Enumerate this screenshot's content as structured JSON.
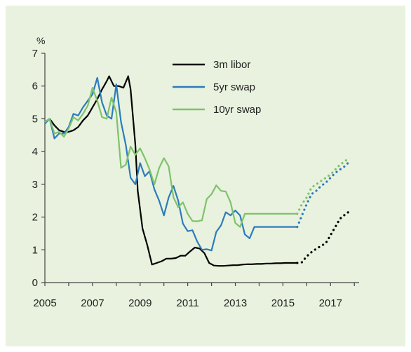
{
  "chart_data": {
    "type": "line",
    "title": "",
    "xlabel": "",
    "ylabel": "%",
    "xlim": [
      2005,
      2018.2
    ],
    "ylim": [
      0,
      7
    ],
    "x_ticks": [
      2005,
      2007,
      2009,
      2011,
      2013,
      2015,
      2017
    ],
    "y_ticks": [
      0,
      1,
      2,
      3,
      4,
      5,
      6,
      7
    ],
    "grid": false,
    "legend_position": "top-center",
    "forecast_start_x": 2015.6,
    "series": [
      {
        "name": "3m libor",
        "color": "#000000",
        "points": [
          [
            2005.0,
            4.9
          ],
          [
            2005.2,
            5.0
          ],
          [
            2005.4,
            4.8
          ],
          [
            2005.6,
            4.65
          ],
          [
            2005.8,
            4.6
          ],
          [
            2006.0,
            4.6
          ],
          [
            2006.2,
            4.65
          ],
          [
            2006.4,
            4.75
          ],
          [
            2006.6,
            4.95
          ],
          [
            2006.8,
            5.1
          ],
          [
            2007.0,
            5.35
          ],
          [
            2007.2,
            5.6
          ],
          [
            2007.4,
            5.9
          ],
          [
            2007.6,
            6.15
          ],
          [
            2007.7,
            6.3
          ],
          [
            2007.9,
            6.0
          ],
          [
            2008.1,
            6.0
          ],
          [
            2008.3,
            5.95
          ],
          [
            2008.5,
            6.3
          ],
          [
            2008.6,
            5.9
          ],
          [
            2008.8,
            4.2
          ],
          [
            2008.9,
            2.8
          ],
          [
            2009.1,
            1.65
          ],
          [
            2009.3,
            1.15
          ],
          [
            2009.5,
            0.55
          ],
          [
            2009.7,
            0.6
          ],
          [
            2009.9,
            0.65
          ],
          [
            2010.1,
            0.73
          ],
          [
            2010.3,
            0.73
          ],
          [
            2010.5,
            0.75
          ],
          [
            2010.7,
            0.82
          ],
          [
            2010.9,
            0.82
          ],
          [
            2011.1,
            0.95
          ],
          [
            2011.3,
            1.07
          ],
          [
            2011.5,
            1.04
          ],
          [
            2011.7,
            0.9
          ],
          [
            2011.9,
            0.6
          ],
          [
            2012.1,
            0.52
          ],
          [
            2012.3,
            0.51
          ],
          [
            2012.5,
            0.51
          ],
          [
            2012.7,
            0.52
          ],
          [
            2012.9,
            0.53
          ],
          [
            2013.1,
            0.53
          ],
          [
            2013.3,
            0.55
          ],
          [
            2013.5,
            0.56
          ],
          [
            2013.7,
            0.56
          ],
          [
            2013.9,
            0.57
          ],
          [
            2014.1,
            0.57
          ],
          [
            2014.3,
            0.58
          ],
          [
            2014.5,
            0.58
          ],
          [
            2014.7,
            0.59
          ],
          [
            2014.9,
            0.59
          ],
          [
            2015.1,
            0.6
          ],
          [
            2015.3,
            0.6
          ],
          [
            2015.5,
            0.6
          ],
          [
            2015.6,
            0.6
          ],
          [
            2015.8,
            0.62
          ],
          [
            2016.0,
            0.8
          ],
          [
            2016.2,
            0.93
          ],
          [
            2016.4,
            1.03
          ],
          [
            2016.6,
            1.12
          ],
          [
            2016.8,
            1.2
          ],
          [
            2017.0,
            1.45
          ],
          [
            2017.2,
            1.7
          ],
          [
            2017.4,
            1.95
          ],
          [
            2017.6,
            2.07
          ],
          [
            2017.8,
            2.18
          ]
        ]
      },
      {
        "name": "5yr swap",
        "color": "#2d7bbd",
        "points": [
          [
            2005.0,
            4.85
          ],
          [
            2005.2,
            5.0
          ],
          [
            2005.4,
            4.4
          ],
          [
            2005.6,
            4.55
          ],
          [
            2005.8,
            4.55
          ],
          [
            2006.0,
            4.75
          ],
          [
            2006.2,
            5.15
          ],
          [
            2006.4,
            5.1
          ],
          [
            2006.6,
            5.35
          ],
          [
            2006.8,
            5.55
          ],
          [
            2007.0,
            5.75
          ],
          [
            2007.2,
            6.25
          ],
          [
            2007.4,
            5.5
          ],
          [
            2007.6,
            5.1
          ],
          [
            2007.8,
            5.0
          ],
          [
            2008.0,
            6.05
          ],
          [
            2008.2,
            4.9
          ],
          [
            2008.4,
            4.2
          ],
          [
            2008.6,
            3.2
          ],
          [
            2008.8,
            3.0
          ],
          [
            2009.0,
            3.65
          ],
          [
            2009.2,
            3.25
          ],
          [
            2009.4,
            3.4
          ],
          [
            2009.6,
            2.85
          ],
          [
            2009.8,
            2.5
          ],
          [
            2010.0,
            2.05
          ],
          [
            2010.2,
            2.6
          ],
          [
            2010.4,
            2.95
          ],
          [
            2010.6,
            2.5
          ],
          [
            2010.8,
            1.8
          ],
          [
            2011.0,
            1.57
          ],
          [
            2011.2,
            1.6
          ],
          [
            2011.4,
            1.25
          ],
          [
            2011.6,
            1.0
          ],
          [
            2011.8,
            1.02
          ],
          [
            2012.0,
            0.98
          ],
          [
            2012.2,
            1.55
          ],
          [
            2012.4,
            1.75
          ],
          [
            2012.6,
            2.15
          ],
          [
            2012.8,
            2.05
          ],
          [
            2013.0,
            2.2
          ],
          [
            2013.2,
            2.05
          ],
          [
            2013.4,
            1.47
          ],
          [
            2013.6,
            1.35
          ],
          [
            2013.8,
            1.7
          ],
          [
            2015.6,
            1.7
          ],
          [
            2015.8,
            2.05
          ],
          [
            2016.0,
            2.4
          ],
          [
            2016.2,
            2.7
          ],
          [
            2016.4,
            2.8
          ],
          [
            2016.6,
            2.95
          ],
          [
            2016.8,
            3.05
          ],
          [
            2017.0,
            3.2
          ],
          [
            2017.2,
            3.35
          ],
          [
            2017.4,
            3.45
          ],
          [
            2017.6,
            3.55
          ],
          [
            2017.8,
            3.7
          ]
        ]
      },
      {
        "name": "10yr swap",
        "color": "#7fc26b",
        "points": [
          [
            2005.0,
            4.9
          ],
          [
            2005.2,
            5.0
          ],
          [
            2005.4,
            4.55
          ],
          [
            2005.6,
            4.6
          ],
          [
            2005.8,
            4.45
          ],
          [
            2006.0,
            4.7
          ],
          [
            2006.2,
            5.05
          ],
          [
            2006.4,
            4.95
          ],
          [
            2006.6,
            5.15
          ],
          [
            2006.8,
            5.4
          ],
          [
            2007.0,
            5.95
          ],
          [
            2007.2,
            5.55
          ],
          [
            2007.4,
            5.05
          ],
          [
            2007.6,
            5.0
          ],
          [
            2007.8,
            5.65
          ],
          [
            2008.0,
            5.2
          ],
          [
            2008.2,
            3.5
          ],
          [
            2008.4,
            3.6
          ],
          [
            2008.6,
            4.15
          ],
          [
            2008.8,
            3.9
          ],
          [
            2009.0,
            4.1
          ],
          [
            2009.2,
            3.8
          ],
          [
            2009.4,
            3.45
          ],
          [
            2009.6,
            3.0
          ],
          [
            2009.8,
            3.5
          ],
          [
            2010.0,
            3.8
          ],
          [
            2010.2,
            3.55
          ],
          [
            2010.4,
            2.6
          ],
          [
            2010.6,
            2.3
          ],
          [
            2010.8,
            2.45
          ],
          [
            2011.0,
            2.1
          ],
          [
            2011.2,
            1.88
          ],
          [
            2011.4,
            1.87
          ],
          [
            2011.6,
            1.9
          ],
          [
            2011.8,
            2.55
          ],
          [
            2012.0,
            2.7
          ],
          [
            2012.2,
            2.97
          ],
          [
            2012.4,
            2.8
          ],
          [
            2012.6,
            2.78
          ],
          [
            2012.8,
            2.45
          ],
          [
            2013.0,
            1.82
          ],
          [
            2013.2,
            1.7
          ],
          [
            2013.4,
            2.1
          ],
          [
            2015.6,
            2.1
          ],
          [
            2015.8,
            2.4
          ],
          [
            2016.0,
            2.6
          ],
          [
            2016.2,
            2.9
          ],
          [
            2016.4,
            3.0
          ],
          [
            2016.6,
            3.1
          ],
          [
            2016.8,
            3.2
          ],
          [
            2017.0,
            3.3
          ],
          [
            2017.2,
            3.45
          ],
          [
            2017.4,
            3.6
          ],
          [
            2017.6,
            3.7
          ],
          [
            2017.8,
            3.82
          ]
        ]
      }
    ]
  }
}
